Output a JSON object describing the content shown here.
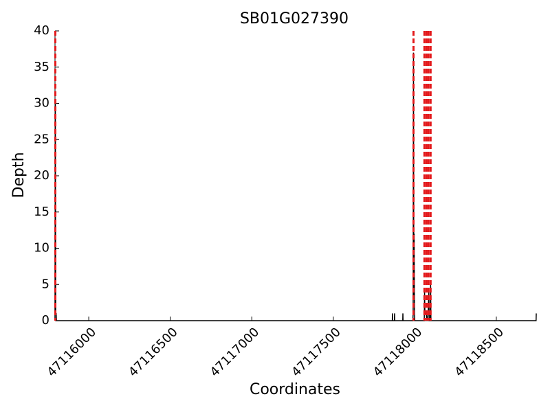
{
  "chart_data": {
    "type": "line",
    "title": "SB01G027390",
    "xlabel": "Coordinates",
    "ylabel": "Depth",
    "series": [
      {
        "name": "Depth",
        "color": "#000000",
        "x": [
          47115793,
          47115795,
          47115797,
          47115800,
          47115802,
          47117862,
          47117863,
          47117864,
          47117875,
          47117876,
          47117877,
          47117926,
          47117927,
          47117928,
          47117988,
          47117990,
          47117992,
          47117994,
          47117996,
          47117998,
          47118000,
          47118058,
          47118060,
          47118062,
          47118070,
          47118074,
          47118082,
          47118086,
          47118088,
          47118095,
          47118097,
          47118099,
          47118744,
          47118745
        ],
        "values": [
          0,
          30,
          1,
          1,
          0,
          0,
          1,
          0,
          0,
          1,
          0,
          0,
          1,
          0,
          0,
          1,
          37,
          3,
          12,
          1,
          0,
          0,
          4,
          1,
          1,
          0,
          1,
          4,
          0,
          0,
          5,
          0,
          0,
          1
        ]
      }
    ],
    "vlines": [
      47115795,
      47117992,
      47118059,
      47118072,
      47118084,
      47118097
    ],
    "vline_color": "#e31a1c",
    "xlim": [
      47115793,
      47118745
    ],
    "xticks": [
      47116000,
      47116500,
      47117000,
      47117500,
      47118000,
      47118500
    ],
    "ylim": [
      0,
      40
    ],
    "yticks": [
      0,
      5,
      10,
      15,
      20,
      25,
      30,
      35,
      40
    ]
  }
}
